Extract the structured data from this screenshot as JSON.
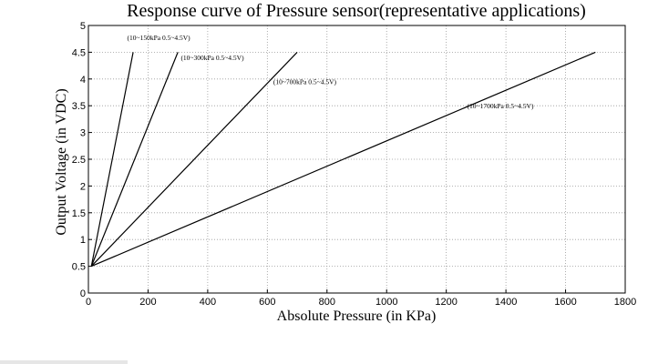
{
  "chart_data": {
    "type": "line",
    "title": "Response curve of Pressure sensor(representative applications)",
    "xlabel": "Absolute Pressure (in KPa)",
    "ylabel": "Output Voltage (in VDC)",
    "xlim": [
      0,
      1800
    ],
    "ylim": [
      0,
      5
    ],
    "xticks": [
      0,
      200,
      400,
      600,
      800,
      1000,
      1200,
      1400,
      1600,
      1800
    ],
    "yticks": [
      0,
      0.5,
      1,
      1.5,
      2,
      2.5,
      3,
      3.5,
      4,
      4.5,
      5
    ],
    "grid": true,
    "series": [
      {
        "name": "(10~150kPa  0.5~4.5V)",
        "x": [
          10,
          150
        ],
        "y": [
          0.5,
          4.5
        ]
      },
      {
        "name": "(10~300kPa  0.5~4.5V)",
        "x": [
          10,
          300
        ],
        "y": [
          0.5,
          4.5
        ]
      },
      {
        "name": "(10~700kPa  0.5~4.5V)",
        "x": [
          10,
          700
        ],
        "y": [
          0.5,
          4.5
        ]
      },
      {
        "name": "(10~1700kPa  0.5~4.5V)",
        "x": [
          10,
          1700
        ],
        "y": [
          0.5,
          4.5
        ]
      }
    ],
    "annotations": [
      {
        "text": "(10~150kPa  0.5~4.5V)",
        "x": 130,
        "y": 4.73
      },
      {
        "text": "(10~300kPa  0.5~4.5V)",
        "x": 310,
        "y": 4.35
      },
      {
        "text": "(10~700kPa  0.5~4.5V)",
        "x": 620,
        "y": 3.9
      },
      {
        "text": "(10~1700kPa  0.5~4.5V)",
        "x": 1270,
        "y": 3.45
      }
    ]
  }
}
